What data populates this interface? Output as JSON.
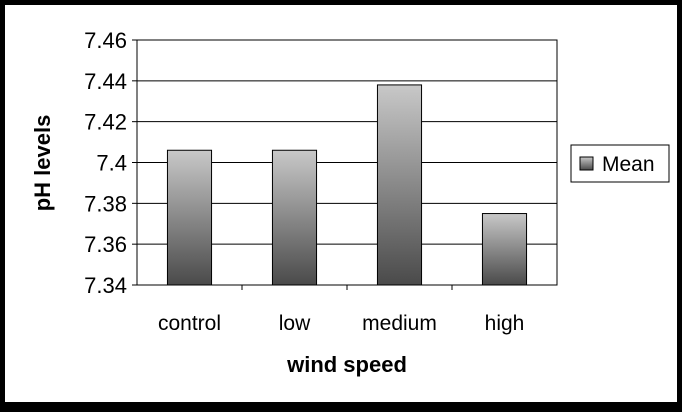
{
  "chart_data": {
    "type": "bar",
    "title": "",
    "xlabel": "wind speed",
    "ylabel": "pH levels",
    "categories": [
      "control",
      "low",
      "medium",
      "high"
    ],
    "series": [
      {
        "name": "Mean",
        "values": [
          7.406,
          7.406,
          7.438,
          7.375
        ]
      }
    ],
    "ylim": [
      7.34,
      7.46
    ],
    "yticks": [
      "7.34",
      "7.36",
      "7.38",
      "7.4",
      "7.42",
      "7.44",
      "7.46"
    ],
    "grid": true,
    "legend_position": "right",
    "colors": {
      "frame": "#000000",
      "background": "#ffffff",
      "bar_top": "#c8c8c8",
      "bar_bottom": "#4a4a4a",
      "gridline": "#000000"
    }
  }
}
